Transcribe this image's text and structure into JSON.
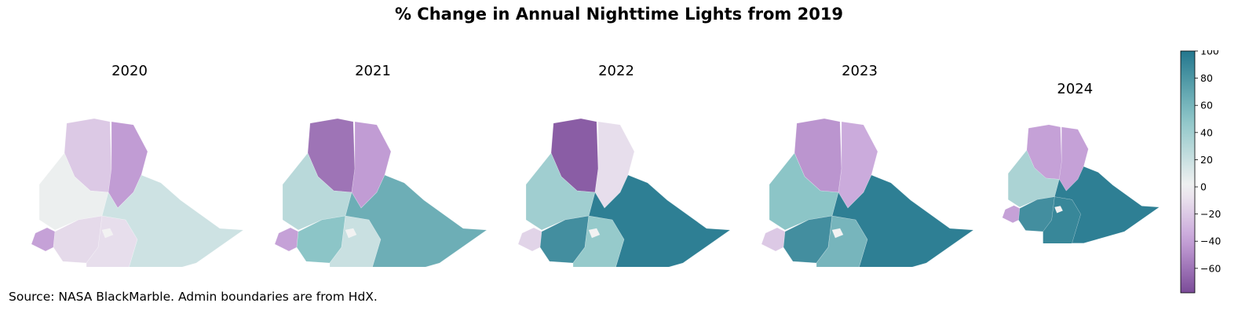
{
  "title": "% Change in Annual Nighttime Lights from 2019",
  "source": "Source: NASA BlackMarble. Admin boundaries are from HdX.",
  "colorbar": {
    "ticks": [
      "100",
      "80",
      "60",
      "40",
      "20",
      "0",
      "−20",
      "−40",
      "−60"
    ],
    "tick_values": [
      100,
      80,
      60,
      40,
      20,
      0,
      -20,
      -40,
      -60
    ],
    "range": [
      -78,
      100
    ],
    "colors": {
      "neg_max": "#7a4b98",
      "neg_mid": "#c7a3d9",
      "zero": "#f2f2f2",
      "pos_mid": "#8cc5c7",
      "pos_max": "#23778e"
    }
  },
  "panels": [
    {
      "year": "2020",
      "regions": {
        "north_west": -20,
        "north_east": -42,
        "west": 3,
        "south_west": -12,
        "far_west": -40,
        "south": -10,
        "east": 18,
        "center_capital": 0
      }
    },
    {
      "year": "2021",
      "regions": {
        "north_west": -60,
        "north_east": -42,
        "west": 28,
        "south_west": 50,
        "far_west": -40,
        "south": 20,
        "east": 65,
        "center_capital": 0
      }
    },
    {
      "year": "2022",
      "regions": {
        "north_west": -70,
        "north_east": -10,
        "west": 40,
        "south_west": 85,
        "far_west": -15,
        "south": 45,
        "east": 95,
        "center_capital": 0
      }
    },
    {
      "year": "2023",
      "regions": {
        "north_west": -45,
        "north_east": -35,
        "west": 50,
        "south_west": 85,
        "far_west": -20,
        "south": 60,
        "east": 95,
        "center_capital": 0
      }
    },
    {
      "year": "2024",
      "regions": {
        "north_west": -40,
        "north_east": -40,
        "west": 35,
        "south_west": 85,
        "far_west": -40,
        "south": 90,
        "east": 95,
        "center_capital": 0
      }
    }
  ]
}
